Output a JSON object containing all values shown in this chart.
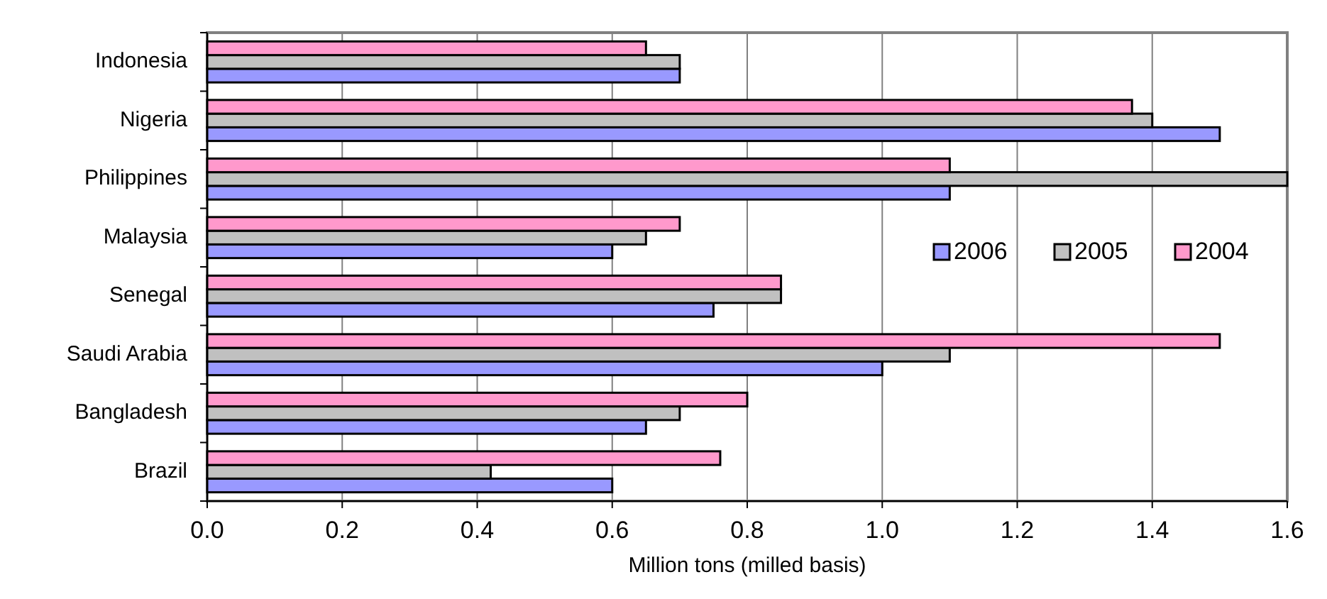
{
  "chart_data": {
    "type": "bar",
    "orientation": "horizontal",
    "xlabel": "Million tons (milled basis)",
    "categories": [
      "Indonesia",
      "Nigeria",
      "Philippines",
      "Malaysia",
      "Senegal",
      "Saudi Arabia",
      "Bangladesh",
      "Brazil"
    ],
    "series": [
      {
        "name": "2006",
        "color": "#9999ff",
        "values": [
          0.7,
          1.5,
          1.1,
          0.6,
          0.75,
          1.0,
          0.65,
          0.6
        ]
      },
      {
        "name": "2005",
        "color": "#c0c0c0",
        "values": [
          0.7,
          1.4,
          1.6,
          0.65,
          0.85,
          1.1,
          0.7,
          0.42
        ]
      },
      {
        "name": "2004",
        "color": "#ff99cc",
        "values": [
          0.65,
          1.37,
          1.1,
          0.7,
          0.85,
          1.5,
          0.8,
          0.76
        ]
      }
    ],
    "xlim": [
      0,
      1.6
    ],
    "xticks": [
      {
        "value": 0,
        "label": "0.0"
      },
      0.2,
      0.4,
      0.6,
      0.8,
      {
        "value": 1,
        "label": "1.0"
      },
      1.2,
      1.4,
      1.6
    ],
    "grid": "x",
    "legend": "right"
  }
}
